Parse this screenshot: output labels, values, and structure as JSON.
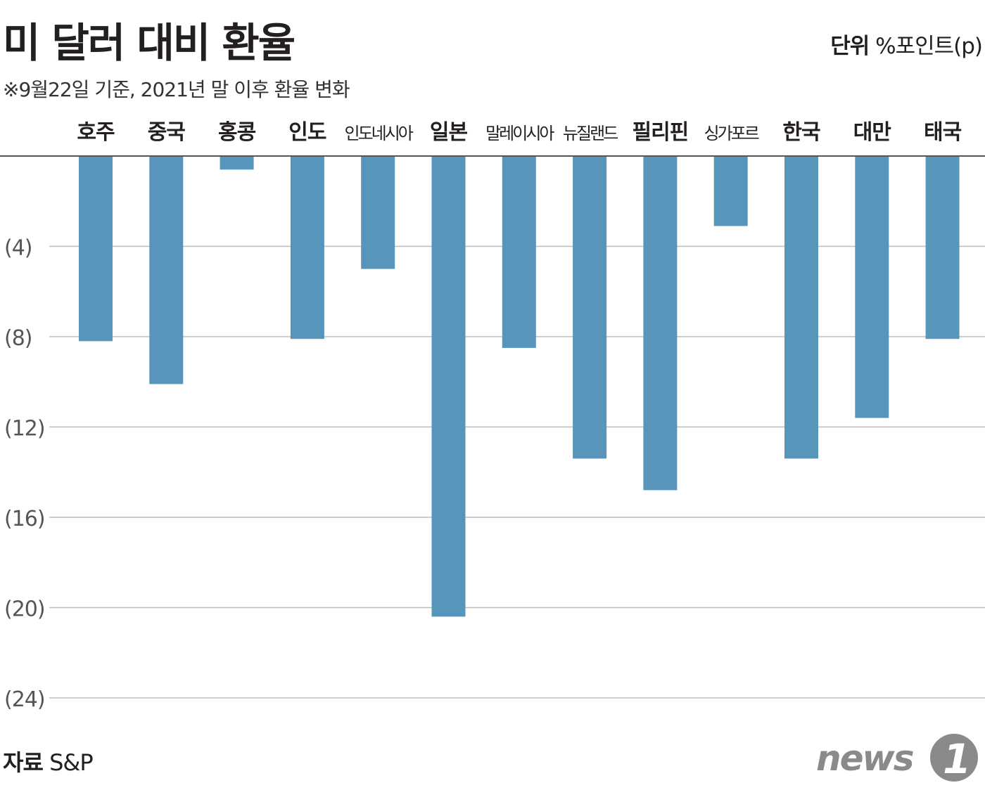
{
  "title": "미 달러 대비 환율",
  "subtitle": "※9월22일 기준, 2021년 말 이후 환율 변화",
  "unit_label": "단위",
  "unit_value": "%포인트(p)",
  "source_label": "자료",
  "source_value": "S&P",
  "logo_text": "news1",
  "colors": {
    "bar": "#5796ba",
    "grid": "#bdbdbd",
    "baseline": "#555555"
  },
  "chart_data": {
    "type": "bar",
    "categories": [
      "호주",
      "중국",
      "홍콩",
      "인도",
      "인도네시아",
      "일본",
      "말레이시아",
      "뉴질랜드",
      "필리핀",
      "싱가포르",
      "한국",
      "대만",
      "태국"
    ],
    "values": [
      -8.2,
      -10.1,
      -0.6,
      -8.1,
      -5.0,
      -20.4,
      -8.5,
      -13.4,
      -14.8,
      -3.1,
      -13.4,
      -11.6,
      -8.1
    ],
    "ylim": [
      -24,
      0
    ],
    "yticks": [
      -4,
      -8,
      -12,
      -16,
      -20,
      -24
    ],
    "ytick_labels": [
      "(4)",
      "(8)",
      "(12)",
      "(16)",
      "(20)",
      "(24)"
    ],
    "grid": true,
    "category_axis_position": "top"
  }
}
